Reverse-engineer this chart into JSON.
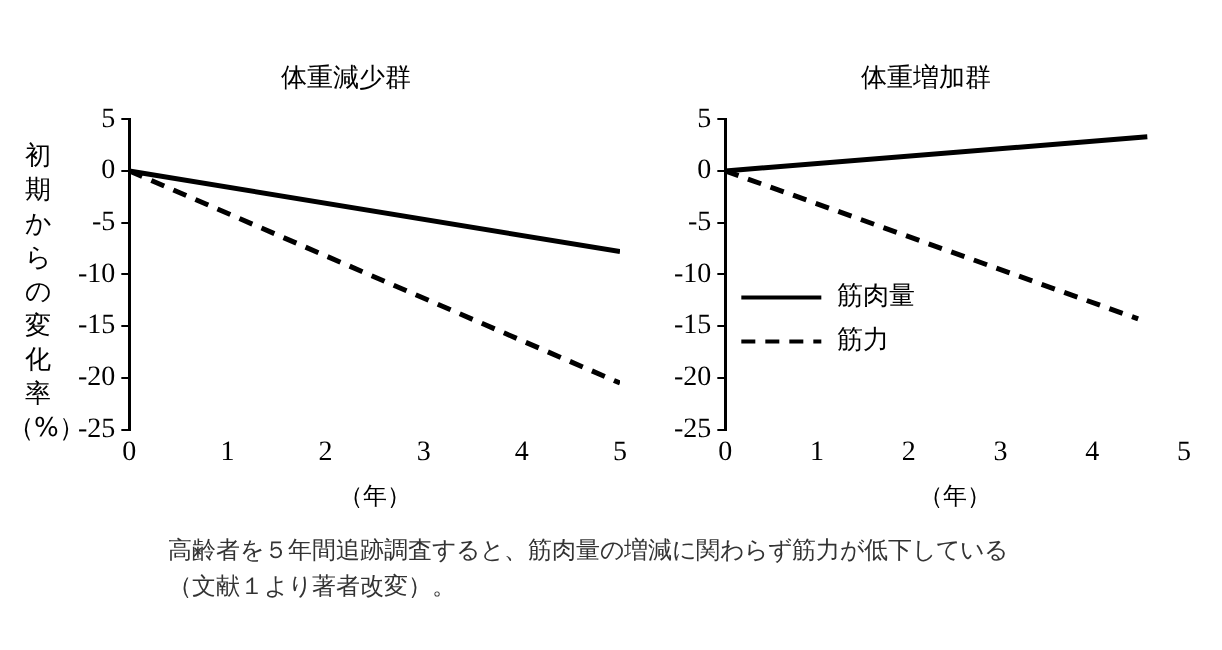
{
  "chart_data": [
    {
      "type": "line",
      "title": "体重減少群",
      "xlabel": "（年）",
      "ylabel": "初期からの変化率（%）",
      "xlim": [
        0,
        5
      ],
      "xticks": [
        0,
        1,
        2,
        3,
        4,
        5
      ],
      "ylim": [
        -25,
        5
      ],
      "yticks": [
        -25,
        -20,
        -15,
        -10,
        -5,
        0,
        5
      ],
      "grid": false,
      "marker": "none",
      "series": [
        {
          "color": "#000000",
          "line_style": "solid",
          "x": [
            0,
            5
          ],
          "values": [
            0,
            -7.8
          ]
        },
        {
          "color": "#000000",
          "line_style": "dashed",
          "x": [
            0,
            5
          ],
          "values": [
            0,
            -20.5
          ]
        }
      ],
      "annotations": [
        "高齢者を５年間追跡調査すると、筋肉量の増減に関わらず筋力が低下している",
        "（文献１より著者改変）。"
      ]
    },
    {
      "type": "line",
      "title": "体重増加群",
      "xlabel": "（年）",
      "xlim": [
        0,
        5
      ],
      "xticks": [
        0,
        1,
        2,
        3,
        4,
        5
      ],
      "ylim": [
        -25,
        5
      ],
      "yticks": [
        -25,
        -20,
        -15,
        -10,
        -5,
        0,
        5
      ],
      "grid": false,
      "legend": "bottom left",
      "marker": "none",
      "series": [
        {
          "name": "筋肉量",
          "color": "#000000",
          "line_style": "solid",
          "x": [
            0,
            4.6
          ],
          "values": [
            0,
            3.3
          ]
        },
        {
          "name": "筋力",
          "color": "#000000",
          "line_style": "dashed",
          "x": [
            0,
            4.5
          ],
          "values": [
            0,
            -14.3
          ]
        }
      ]
    }
  ]
}
